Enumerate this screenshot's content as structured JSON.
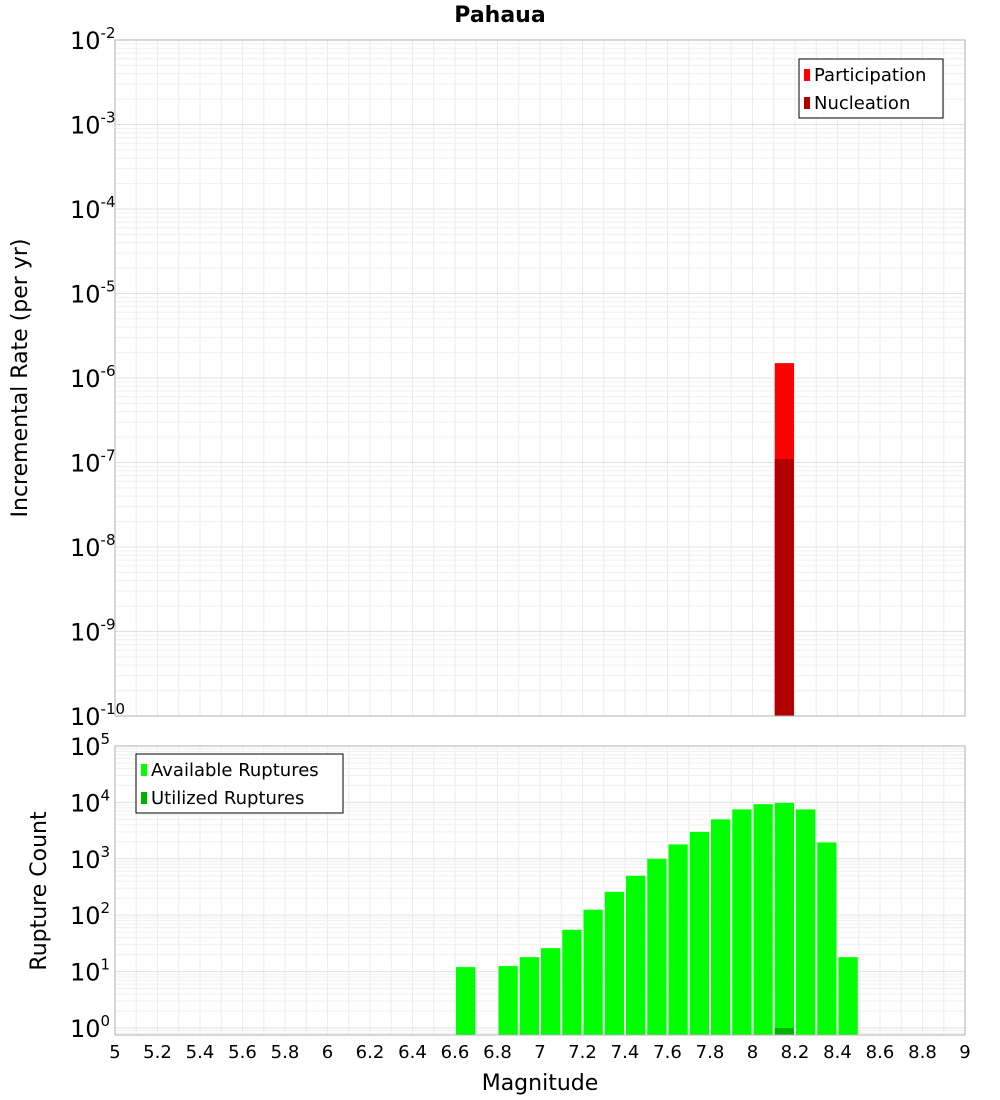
{
  "chart_data": [
    {
      "type": "bar",
      "title": "Pahaua",
      "xlabel": "",
      "ylabel": "Incremental Rate (per yr)",
      "yscale": "log",
      "xlim": [
        5,
        9
      ],
      "ylim": [
        1e-10,
        0.01
      ],
      "grid": true,
      "legend_position": "top-right",
      "y_ticks": [
        {
          "base": "10",
          "exp": "-2",
          "value": 0.01
        },
        {
          "base": "10",
          "exp": "-3",
          "value": 0.001
        },
        {
          "base": "10",
          "exp": "-4",
          "value": 0.0001
        },
        {
          "base": "10",
          "exp": "-5",
          "value": 1e-05
        },
        {
          "base": "10",
          "exp": "-6",
          "value": 1e-06
        },
        {
          "base": "10",
          "exp": "-7",
          "value": 1e-07
        },
        {
          "base": "10",
          "exp": "-8",
          "value": 1e-08
        },
        {
          "base": "10",
          "exp": "-9",
          "value": 1e-09
        },
        {
          "base": "10",
          "exp": "-10",
          "value": 1e-10
        }
      ],
      "series": [
        {
          "name": "Participation",
          "color": "#ff0000",
          "bars": [
            {
              "x": 8.15,
              "value": 1.5e-06
            }
          ]
        },
        {
          "name": "Nucleation",
          "color": "#b20000",
          "bars": [
            {
              "x": 8.15,
              "value": 1.1e-07
            }
          ]
        }
      ]
    },
    {
      "type": "bar",
      "title": "",
      "xlabel": "Magnitude",
      "ylabel": "Rupture Count",
      "yscale": "log",
      "xlim": [
        5,
        9
      ],
      "ylim": [
        0.75,
        100000
      ],
      "grid": true,
      "legend_position": "top-left",
      "x_ticks": [
        "5",
        "5.2",
        "5.4",
        "5.6",
        "5.8",
        "6",
        "6.2",
        "6.4",
        "6.6",
        "6.8",
        "7",
        "7.2",
        "7.4",
        "7.6",
        "7.8",
        "8",
        "8.2",
        "8.4",
        "8.6",
        "8.8",
        "9"
      ],
      "y_ticks": [
        {
          "base": "10",
          "exp": "5",
          "value": 100000
        },
        {
          "base": "10",
          "exp": "4",
          "value": 10000
        },
        {
          "base": "10",
          "exp": "3",
          "value": 1000
        },
        {
          "base": "10",
          "exp": "2",
          "value": 100
        },
        {
          "base": "10",
          "exp": "1",
          "value": 10
        },
        {
          "base": "10",
          "exp": "0",
          "value": 1
        }
      ],
      "series": [
        {
          "name": "Available Ruptures",
          "color": "#00ff00",
          "bars": [
            {
              "x": 6.65,
              "value": 12
            },
            {
              "x": 6.85,
              "value": 12.5
            },
            {
              "x": 6.95,
              "value": 18
            },
            {
              "x": 7.05,
              "value": 26
            },
            {
              "x": 7.15,
              "value": 55
            },
            {
              "x": 7.25,
              "value": 125
            },
            {
              "x": 7.35,
              "value": 260
            },
            {
              "x": 7.45,
              "value": 500
            },
            {
              "x": 7.55,
              "value": 1000
            },
            {
              "x": 7.65,
              "value": 1800
            },
            {
              "x": 7.75,
              "value": 3000
            },
            {
              "x": 7.85,
              "value": 5000
            },
            {
              "x": 7.95,
              "value": 7500
            },
            {
              "x": 8.05,
              "value": 9300
            },
            {
              "x": 8.15,
              "value": 9800
            },
            {
              "x": 8.25,
              "value": 7500
            },
            {
              "x": 8.35,
              "value": 1950
            },
            {
              "x": 8.45,
              "value": 18
            }
          ]
        },
        {
          "name": "Utilized Ruptures",
          "color": "#00b200",
          "bars": [
            {
              "x": 8.15,
              "value": 1
            }
          ]
        }
      ]
    }
  ]
}
